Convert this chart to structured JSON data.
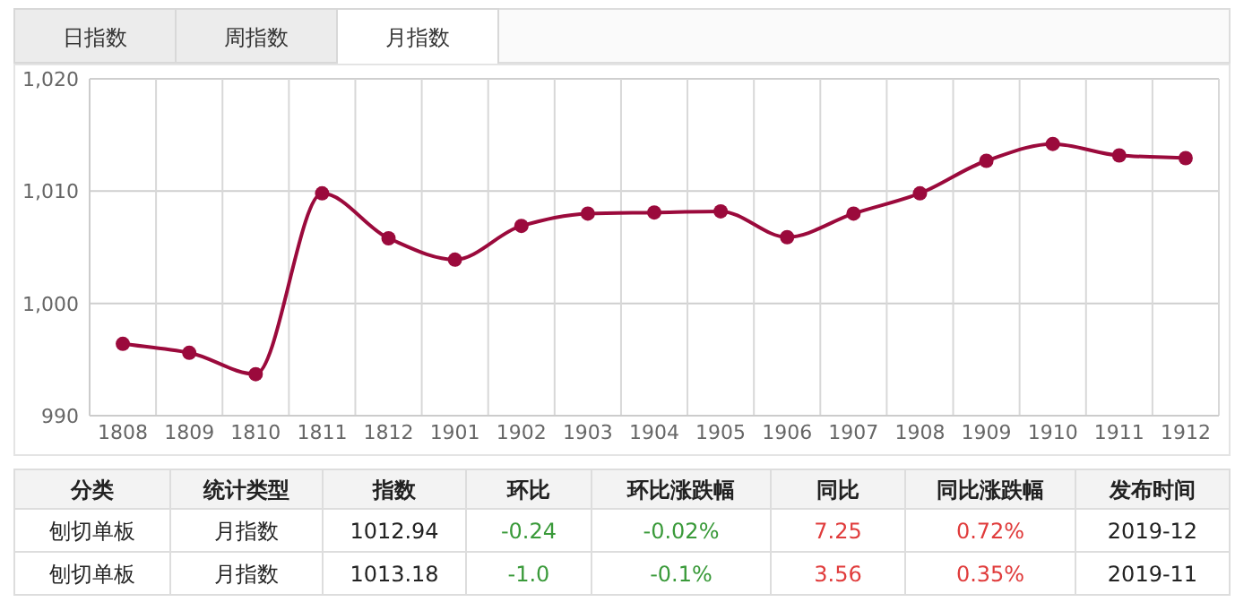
{
  "chart_data": {
    "type": "line",
    "categories": [
      "1808",
      "1809",
      "1810",
      "1811",
      "1812",
      "1901",
      "1902",
      "1903",
      "1904",
      "1905",
      "1906",
      "1907",
      "1908",
      "1909",
      "1910",
      "1911",
      "1912"
    ],
    "values": [
      996.4,
      995.6,
      993.7,
      1009.8,
      1005.8,
      1003.9,
      1006.9,
      1008.0,
      1008.1,
      1008.2,
      1005.9,
      1008.0,
      1009.8,
      1012.7,
      1014.2,
      1013.18,
      1012.94
    ],
    "color": "#9b0a3c",
    "marker": "circle",
    "grid": true,
    "ylim": [
      990,
      1020
    ],
    "yticks": [
      {
        "value": 990,
        "label": "990"
      },
      {
        "value": 1000,
        "label": "1,000"
      },
      {
        "value": 1010,
        "label": "1,010"
      },
      {
        "value": 1020,
        "label": "1,020"
      }
    ],
    "annotations": [
      "日指数",
      "周指数",
      "月指数",
      "分类",
      "统计类型",
      "指数",
      "环比",
      "环比涨跌幅",
      "同比",
      "同比涨跌幅",
      "发布时间",
      "刨切单板",
      "月指数",
      "1012.94",
      "-0.24",
      "-0.02%",
      "7.25",
      "0.72%",
      "2019-12",
      "刨切单板",
      "月指数",
      "1013.18",
      "-1.0",
      "-0.1%",
      "3.56",
      "0.35%",
      "2019-11"
    ]
  }
}
